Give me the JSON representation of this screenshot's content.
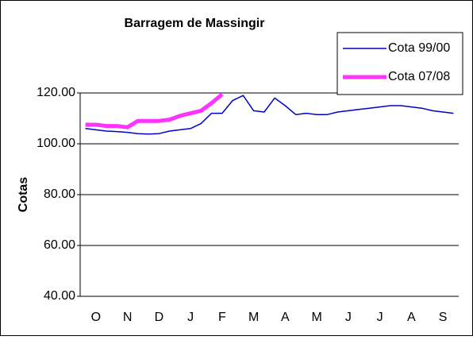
{
  "chart_data": {
    "type": "line",
    "title": "Barragem de Massingir",
    "y_label": "Cotas",
    "categories": [
      null,
      "O",
      null,
      null,
      "N",
      null,
      null,
      "D",
      null,
      null,
      "J",
      null,
      null,
      "F",
      null,
      null,
      "M",
      null,
      null,
      "A",
      null,
      null,
      "M",
      null,
      null,
      "J",
      null,
      null,
      "J",
      null,
      null,
      "A",
      null,
      null,
      "S",
      null
    ],
    "series": [
      {
        "name": "Cota 99/00",
        "color": "#0000cc",
        "values": [
          106,
          105.5,
          105,
          104.8,
          104.5,
          104,
          103.8,
          104,
          105,
          105.5,
          106,
          108,
          112,
          112,
          117,
          119,
          113,
          112.5,
          118,
          115,
          111.5,
          112,
          111.5,
          111.5,
          112.5,
          113,
          113.5,
          114,
          114.5,
          115,
          115,
          114.5,
          114,
          113,
          112.5,
          112
        ]
      },
      {
        "name": "Cota 07/08",
        "color": "#ff33ff",
        "values": [
          107.5,
          107.5,
          107,
          107,
          106.5,
          109,
          109,
          109,
          109.5,
          111,
          112,
          113,
          116,
          119.5,
          null,
          null,
          null,
          null,
          null,
          null,
          null,
          null,
          null,
          null,
          null,
          null,
          null,
          null,
          null,
          null,
          null,
          null,
          null,
          null,
          null,
          null
        ]
      }
    ],
    "ylim": [
      40,
      120
    ],
    "yticks": [
      {
        "value": 40,
        "label": "40.00"
      },
      {
        "value": 60,
        "label": "60.00"
      },
      {
        "value": 80,
        "label": "80.00"
      },
      {
        "value": 100,
        "label": "100.00"
      },
      {
        "value": 120,
        "label": "120.00"
      }
    ],
    "grid": true,
    "legend": "top-right"
  }
}
